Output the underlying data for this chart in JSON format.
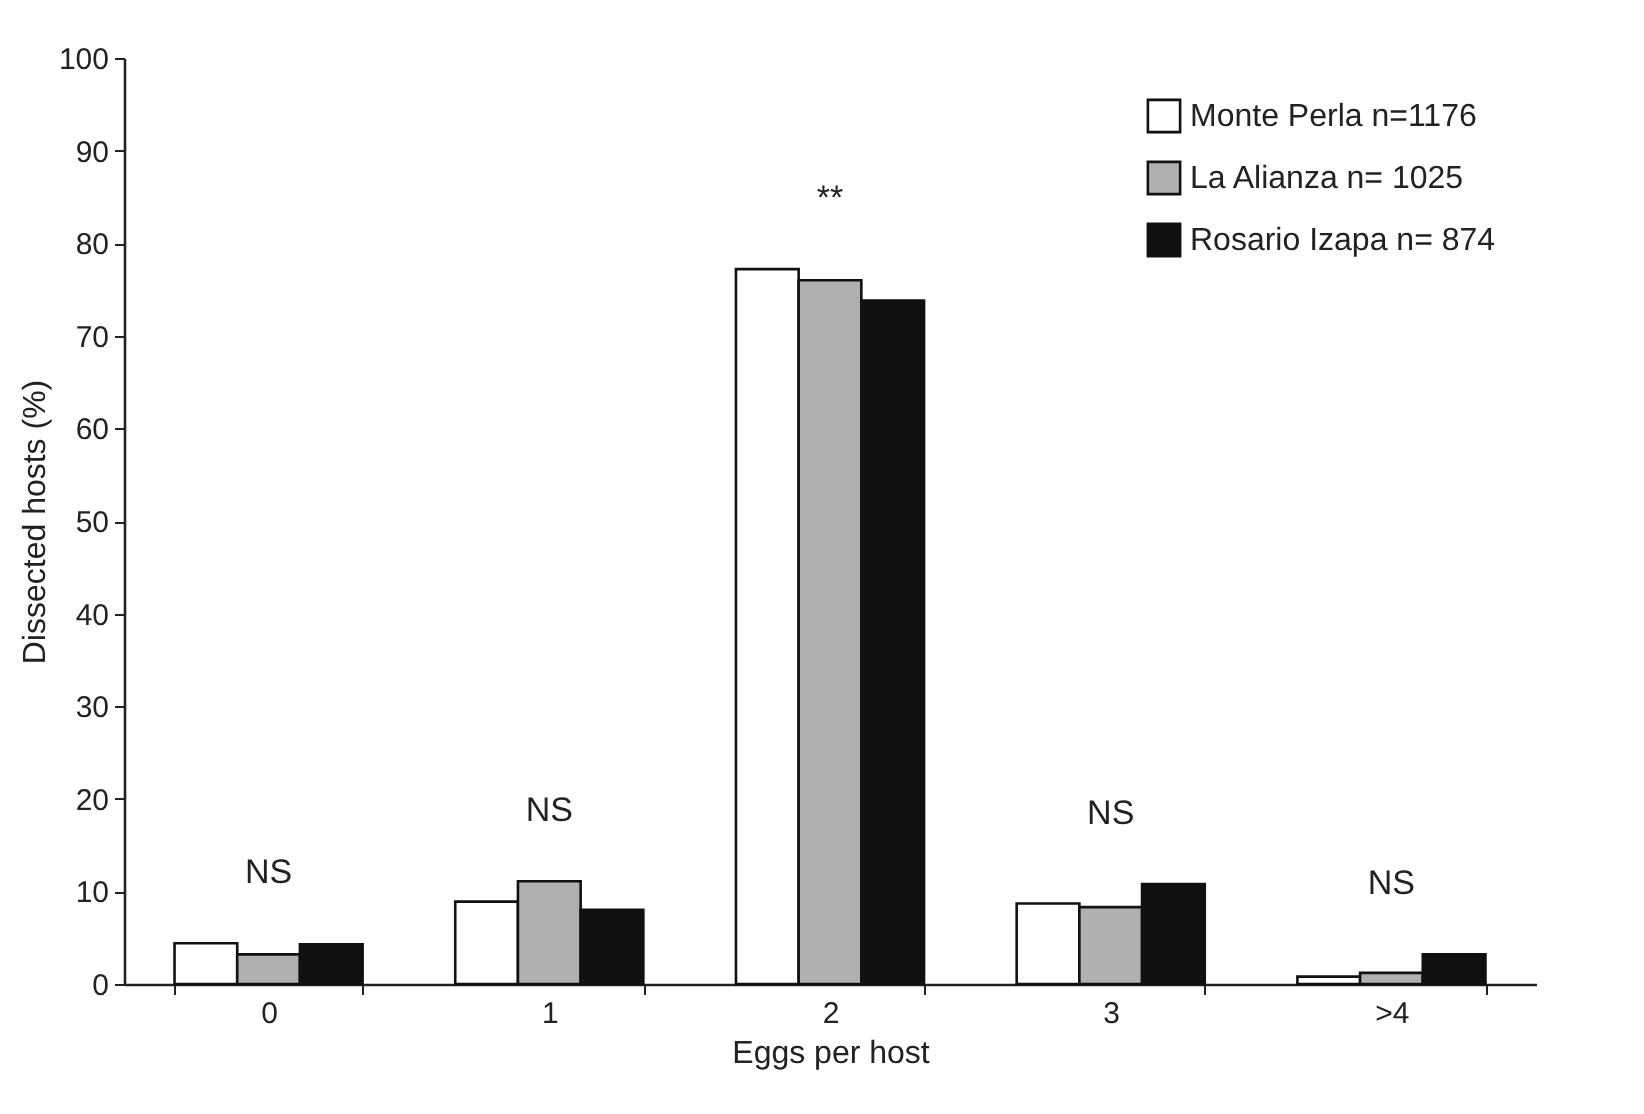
{
  "chart_data": {
    "type": "bar",
    "xlabel": "Eggs per host",
    "ylabel": "Dissected hosts (%)",
    "categories": [
      "0",
      "1",
      "2",
      "3",
      ">4"
    ],
    "series": [
      {
        "name": "Monte Perla n=1176",
        "color": "#ffffff",
        "values": [
          4.4,
          8.9,
          77.2,
          8.7,
          0.8
        ]
      },
      {
        "name": "La Alianza n= 1025",
        "color": "#b0b0b0",
        "values": [
          3.2,
          11.1,
          76.0,
          8.3,
          1.2
        ]
      },
      {
        "name": "Rosario Izapa n= 874",
        "color": "#111111",
        "values": [
          4.3,
          8.0,
          73.8,
          10.8,
          3.2
        ]
      }
    ],
    "ylim": [
      0,
      100
    ],
    "yticks": [
      0,
      10,
      20,
      30,
      40,
      50,
      60,
      70,
      80,
      90,
      100
    ],
    "grid": false,
    "legend": "top right",
    "annotations": [
      "NS",
      "NS",
      "**",
      "NS",
      "NS"
    ]
  }
}
